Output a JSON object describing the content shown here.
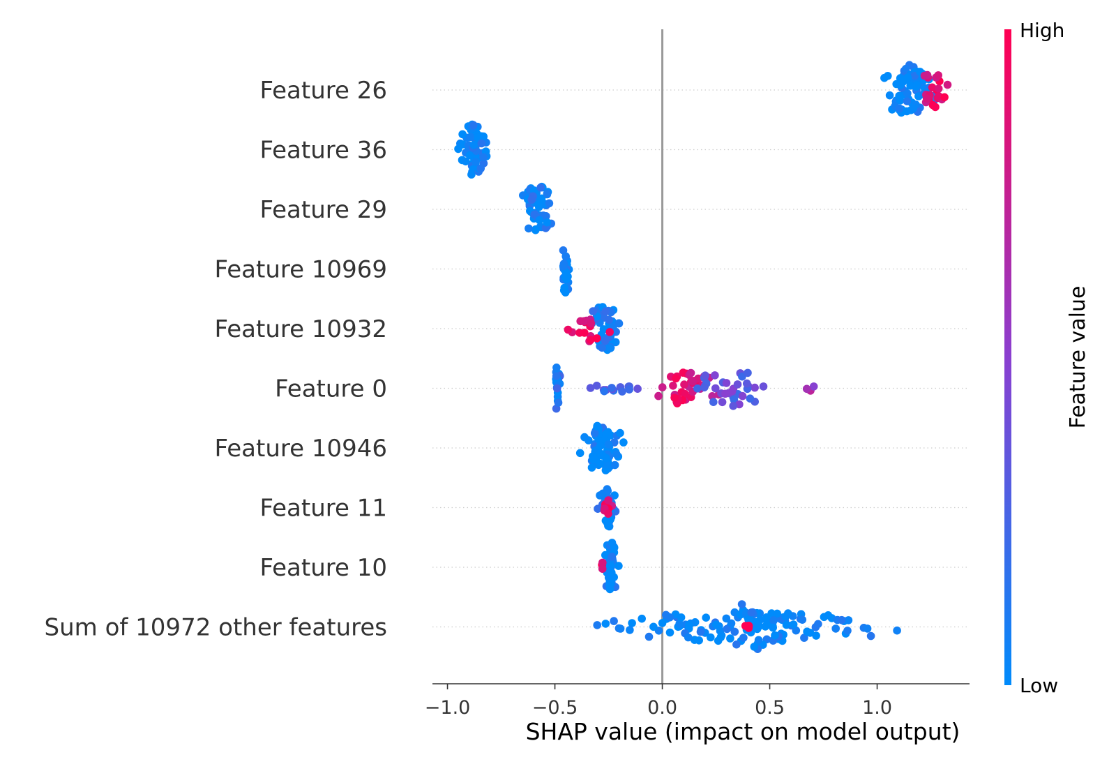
{
  "chart_data": {
    "type": "scatter",
    "subtype": "shap-beeswarm",
    "xlabel": "SHAP value (impact on model output)",
    "xlim": [
      -1.07,
      1.43
    ],
    "xticks": [
      -1.0,
      -0.5,
      0.0,
      0.5,
      1.0
    ],
    "xtick_labels": [
      "−1.0",
      "−0.5",
      "0.0",
      "0.5",
      "1.0"
    ],
    "zero_line": 0.0,
    "grid": false,
    "colorbar": {
      "label": "Feature value",
      "high_label": "High",
      "low_label": "Low",
      "low_color": "#008bfb",
      "mid_color": "#8a3fd0",
      "high_color": "#ff0052",
      "placement": "right"
    },
    "features": [
      {
        "label": "Feature 26",
        "clusters": [
          {
            "c": 1.15,
            "w": 0.14,
            "n": 70,
            "h": 0.95,
            "o": 0.0
          },
          {
            "c": 1.26,
            "w": 0.08,
            "n": 22,
            "h": 0.7,
            "o": 0.9
          }
        ]
      },
      {
        "label": "Feature 36",
        "clusters": [
          {
            "c": -0.88,
            "w": 0.09,
            "n": 60,
            "h": 0.95,
            "o": 0.0
          }
        ]
      },
      {
        "label": "Feature 29",
        "clusters": [
          {
            "c": -0.58,
            "w": 0.08,
            "n": 55,
            "h": 0.9,
            "o": 0.05
          }
        ]
      },
      {
        "label": "Feature 10969",
        "clusters": [
          {
            "c": -0.45,
            "w": 0.02,
            "n": 28,
            "h": 0.9,
            "o": 0.0
          }
        ]
      },
      {
        "label": "Feature 10932",
        "clusters": [
          {
            "c": -0.27,
            "w": 0.09,
            "n": 45,
            "h": 0.85,
            "o": 0.05
          },
          {
            "c": -0.33,
            "w": 0.13,
            "n": 16,
            "h": 0.5,
            "o": 0.9
          }
        ]
      },
      {
        "label": "Feature 0",
        "clusters": [
          {
            "c": -0.49,
            "w": 0.02,
            "n": 22,
            "h": 0.85,
            "o": 0.1
          },
          {
            "c": -0.25,
            "w": 0.2,
            "n": 14,
            "h": 0.15,
            "o": 0.25
          },
          {
            "c": 0.1,
            "w": 0.2,
            "n": 36,
            "h": 0.6,
            "o": 0.85
          },
          {
            "c": 0.32,
            "w": 0.25,
            "n": 34,
            "h": 0.7,
            "o": 0.35
          },
          {
            "c": 0.7,
            "w": 0.04,
            "n": 3,
            "h": 0.1,
            "o": 0.6
          }
        ]
      },
      {
        "label": "Feature 10946",
        "clusters": [
          {
            "c": -0.28,
            "w": 0.12,
            "n": 65,
            "h": 0.9,
            "o": 0.0
          }
        ]
      },
      {
        "label": "Feature 11",
        "clusters": [
          {
            "c": -0.26,
            "w": 0.06,
            "n": 32,
            "h": 0.75,
            "o": 0.05
          },
          {
            "c": -0.25,
            "w": 0.03,
            "n": 8,
            "h": 0.3,
            "o": 0.9
          }
        ]
      },
      {
        "label": "Feature 10",
        "clusters": [
          {
            "c": -0.24,
            "w": 0.04,
            "n": 45,
            "h": 0.95,
            "o": 0.0
          },
          {
            "c": -0.28,
            "w": 0.01,
            "n": 3,
            "h": 0.2,
            "o": 0.9
          }
        ]
      },
      {
        "label": "Sum of 10972 other features",
        "clusters": [
          {
            "c": 0.4,
            "w": 0.82,
            "n": 120,
            "h": 0.55,
            "o": 0.0
          },
          {
            "c": 0.4,
            "w": 0.15,
            "n": 22,
            "h": 0.9,
            "o": 0.0
          },
          {
            "c": 0.4,
            "w": 0.16,
            "n": 3,
            "h": 0.1,
            "o": 0.95
          }
        ]
      }
    ]
  }
}
